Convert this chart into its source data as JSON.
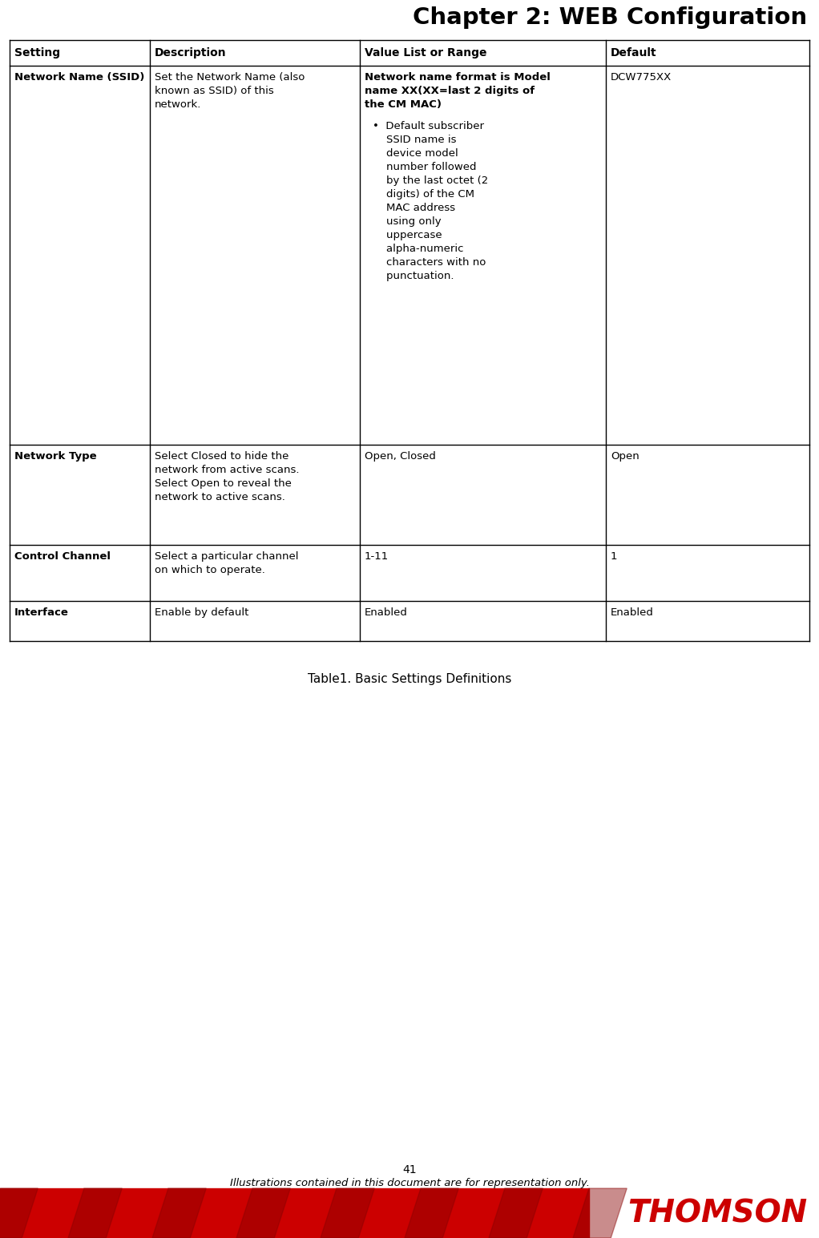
{
  "title": "Chapter 2: WEB Configuration",
  "title_fontsize": 21,
  "page_number": "41",
  "footer_italic": "Illustrations contained in this document are for representation only.",
  "thomson_text": "THOMSON",
  "bg_color": "#ffffff",
  "table_header": [
    "Setting",
    "Description",
    "Value List or Range",
    "Default"
  ],
  "table_caption": "Table1. Basic Settings Definitions",
  "footer_bar_color": "#cc0000",
  "body_fontsize": 9.5,
  "header_fontsize": 10,
  "fig_w": 10.22,
  "fig_h": 15.45,
  "dpi": 100
}
